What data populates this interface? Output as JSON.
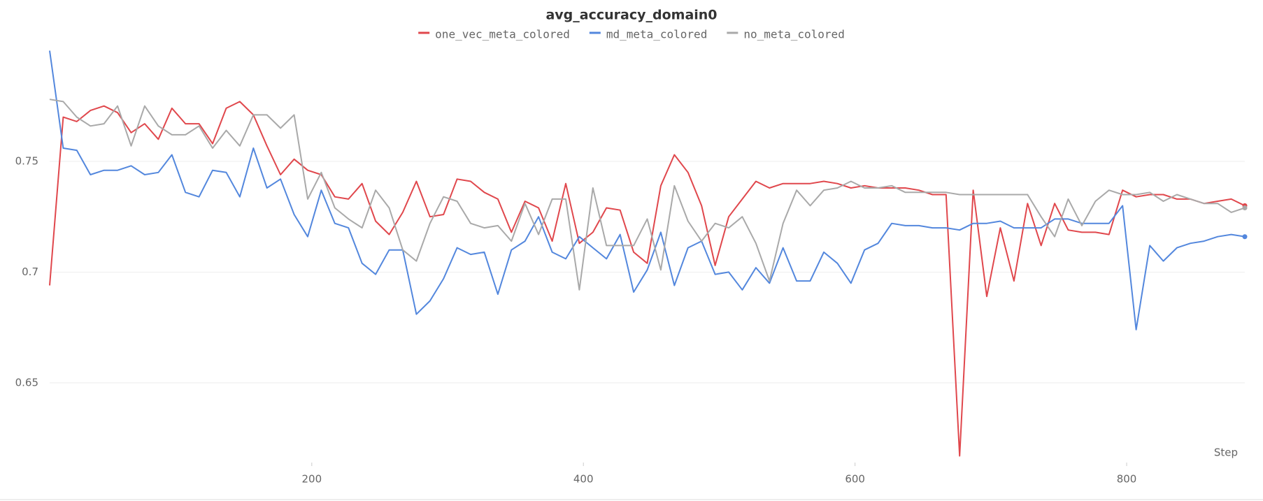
{
  "chart_data": {
    "type": "line",
    "title": "avg_accuracy_domain0",
    "x_label": "Step",
    "x": [
      7,
      17,
      27,
      37,
      47,
      57,
      67,
      77,
      87,
      97,
      107,
      117,
      127,
      137,
      147,
      157,
      167,
      177,
      187,
      197,
      207,
      217,
      227,
      237,
      247,
      257,
      267,
      277,
      287,
      297,
      307,
      317,
      327,
      337,
      347,
      357,
      367,
      377,
      387,
      397,
      407,
      417,
      427,
      437,
      447,
      457,
      467,
      477,
      487,
      497,
      507,
      517,
      527,
      537,
      547,
      557,
      567,
      577,
      587,
      597,
      607,
      617,
      627,
      637,
      647,
      657,
      667,
      677,
      687,
      697,
      707,
      717,
      727,
      737,
      747,
      757,
      767,
      777,
      787,
      797,
      807,
      817,
      827,
      837,
      847,
      857,
      867,
      877,
      887
    ],
    "series": [
      {
        "name": "one_vec_meta_colored",
        "color": "#e0474c",
        "values": [
          0.694,
          0.77,
          0.768,
          0.773,
          0.775,
          0.772,
          0.763,
          0.767,
          0.76,
          0.774,
          0.767,
          0.767,
          0.758,
          0.774,
          0.777,
          0.771,
          0.757,
          0.744,
          0.751,
          0.746,
          0.744,
          0.734,
          0.733,
          0.74,
          0.723,
          0.717,
          0.727,
          0.741,
          0.725,
          0.726,
          0.742,
          0.741,
          0.736,
          0.733,
          0.718,
          0.732,
          0.729,
          0.714,
          0.74,
          0.713,
          0.718,
          0.729,
          0.728,
          0.709,
          0.704,
          0.739,
          0.753,
          0.745,
          0.73,
          0.703,
          0.725,
          0.733,
          0.741,
          0.738,
          0.74,
          0.74,
          0.74,
          0.741,
          0.74,
          0.738,
          0.739,
          0.738,
          0.738,
          0.738,
          0.737,
          0.735,
          0.735,
          0.617,
          0.737,
          0.689,
          0.72,
          0.696,
          0.731,
          0.712,
          0.731,
          0.719,
          0.718,
          0.718,
          0.717,
          0.737,
          0.734,
          0.735,
          0.735,
          0.733,
          0.733,
          0.731,
          0.732,
          0.733,
          0.73
        ]
      },
      {
        "name": "md_meta_colored",
        "color": "#5387dd",
        "values": [
          0.8,
          0.756,
          0.755,
          0.744,
          0.746,
          0.746,
          0.748,
          0.744,
          0.745,
          0.753,
          0.736,
          0.734,
          0.746,
          0.745,
          0.734,
          0.756,
          0.738,
          0.742,
          0.726,
          0.716,
          0.737,
          0.722,
          0.72,
          0.704,
          0.699,
          0.71,
          0.71,
          0.681,
          0.687,
          0.697,
          0.711,
          0.708,
          0.709,
          0.69,
          0.71,
          0.714,
          0.725,
          0.709,
          0.706,
          0.716,
          0.711,
          0.706,
          0.717,
          0.691,
          0.701,
          0.718,
          0.694,
          0.711,
          0.714,
          0.699,
          0.7,
          0.692,
          0.702,
          0.695,
          0.711,
          0.696,
          0.696,
          0.709,
          0.704,
          0.695,
          0.71,
          0.713,
          0.722,
          0.721,
          0.721,
          0.72,
          0.72,
          0.719,
          0.722,
          0.722,
          0.723,
          0.72,
          0.72,
          0.72,
          0.724,
          0.724,
          0.722,
          0.722,
          0.722,
          0.73,
          0.674,
          0.712,
          0.705,
          0.711,
          0.713,
          0.714,
          0.716,
          0.717,
          0.716
        ]
      },
      {
        "name": "no_meta_colored",
        "color": "#a9a9a9",
        "values": [
          0.778,
          0.777,
          0.77,
          0.766,
          0.767,
          0.775,
          0.757,
          0.775,
          0.766,
          0.762,
          0.762,
          0.766,
          0.756,
          0.764,
          0.757,
          0.771,
          0.771,
          0.765,
          0.771,
          0.733,
          0.745,
          0.729,
          0.724,
          0.72,
          0.737,
          0.729,
          0.71,
          0.705,
          0.722,
          0.734,
          0.732,
          0.722,
          0.72,
          0.721,
          0.714,
          0.731,
          0.717,
          0.733,
          0.733,
          0.692,
          0.738,
          0.712,
          0.712,
          0.712,
          0.724,
          0.701,
          0.739,
          0.723,
          0.714,
          0.722,
          0.72,
          0.725,
          0.713,
          0.696,
          0.722,
          0.737,
          0.73,
          0.737,
          0.738,
          0.741,
          0.738,
          0.738,
          0.739,
          0.736,
          0.736,
          0.736,
          0.736,
          0.735,
          0.735,
          0.735,
          0.735,
          0.735,
          0.735,
          0.725,
          0.716,
          0.733,
          0.721,
          0.732,
          0.737,
          0.735,
          0.735,
          0.736,
          0.732,
          0.735,
          0.733,
          0.731,
          0.731,
          0.727,
          0.729
        ]
      }
    ],
    "xlim": [
      7,
      887
    ],
    "xticks": [
      200,
      400,
      600,
      800
    ],
    "ylim": [
      0.614,
      0.803
    ],
    "yticks": [
      0.65,
      0.7,
      0.75
    ],
    "grid": true
  }
}
